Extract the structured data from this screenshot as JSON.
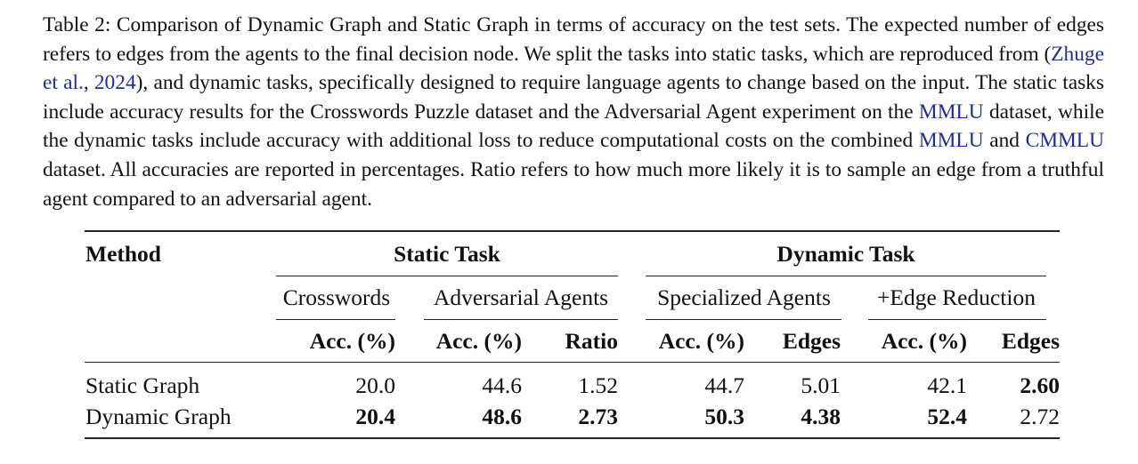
{
  "caption": {
    "label": "Table 2:",
    "parts": [
      {
        "text": " Comparison of Dynamic Graph and Static Graph in terms of accuracy on the test sets. The expected number of edges refers to edges from the agents to the final decision node. We split the tasks into static tasks, which are reproduced from ",
        "link": false
      },
      {
        "text": "(",
        "link": false
      },
      {
        "text": "Zhuge et al.",
        "link": true
      },
      {
        "text": ", ",
        "link": false
      },
      {
        "text": "2024",
        "link": true
      },
      {
        "text": "), and dynamic tasks, specifically designed to require language agents to change based on the input. The static tasks include accuracy results for the Crosswords Puzzle dataset and the Adversarial Agent experiment on the ",
        "link": false
      },
      {
        "text": "MMLU",
        "link": true
      },
      {
        "text": " dataset, while the dynamic tasks include accuracy with additional loss to reduce computational costs on the combined ",
        "link": false
      },
      {
        "text": "MMLU",
        "link": true
      },
      {
        "text": " and ",
        "link": false
      },
      {
        "text": "CMMLU",
        "link": true
      },
      {
        "text": " dataset. All accuracies are reported in percentages. Ratio refers to how much more likely it is to sample an edge from a truthful agent compared to an adversarial agent.",
        "link": false
      }
    ]
  },
  "table": {
    "method_header": "Method",
    "group_headers": [
      "Static Task",
      "Dynamic Task"
    ],
    "subgroup_headers": [
      "Crosswords",
      "Adversarial Agents",
      "Specialized Agents",
      "+Edge Reduction"
    ],
    "column_headers": [
      "Acc. (%)",
      "Acc. (%)",
      "Ratio",
      "Acc. (%)",
      "Edges",
      "Acc. (%)",
      "Edges"
    ],
    "rows": [
      {
        "method": "Static Graph",
        "values": [
          "20.0",
          "44.6",
          "1.52",
          "44.7",
          "5.01",
          "42.1",
          "2.60"
        ],
        "bold": [
          false,
          false,
          false,
          false,
          false,
          false,
          true
        ]
      },
      {
        "method": "Dynamic Graph",
        "values": [
          "20.4",
          "48.6",
          "2.73",
          "50.3",
          "4.38",
          "52.4",
          "2.72"
        ],
        "bold": [
          true,
          true,
          true,
          true,
          true,
          true,
          false
        ]
      }
    ]
  }
}
